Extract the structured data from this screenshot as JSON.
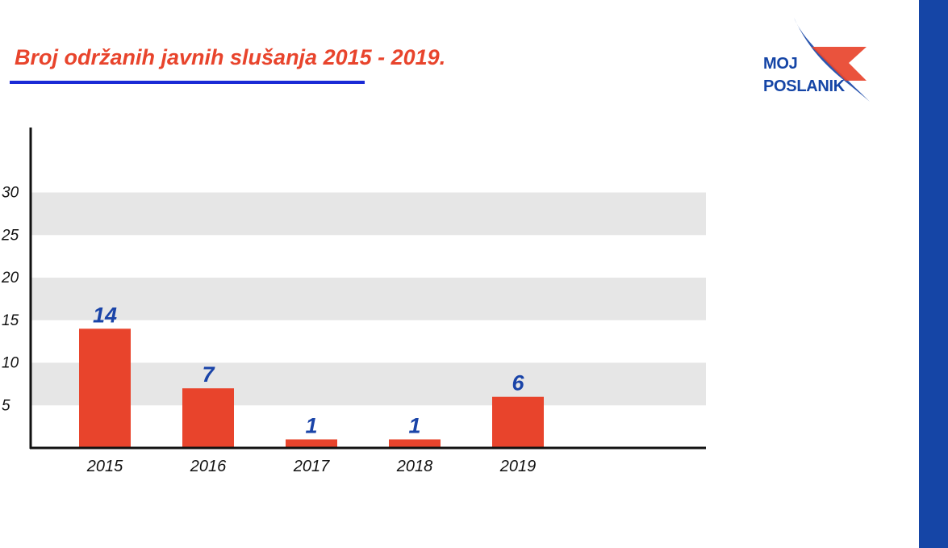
{
  "logo": {
    "line1": "MOJ",
    "line2": "POSLANIK",
    "colors": {
      "red": "#e8442c",
      "blue": "#1545a6"
    }
  },
  "theme": {
    "bar_color": "#e8442c",
    "value_label_color": "#1a44a8",
    "band_color": "#e6e6e6",
    "title_color": "#e8442c",
    "underline_color": "#1a2ad6",
    "stripe_color": "#1545a6"
  },
  "chart_data": {
    "type": "bar",
    "title": "Broj održanih javnih slušanja 2015 - 2019.",
    "categories": [
      "2015",
      "2016",
      "2017",
      "2018",
      "2019"
    ],
    "values": [
      14,
      7,
      1,
      1,
      6
    ],
    "value_labels": [
      "14",
      "7",
      "1",
      "1",
      "6"
    ],
    "yticks": [
      5,
      10,
      15,
      20,
      25,
      30
    ],
    "ytick_labels": [
      "5",
      "10",
      "15",
      "20",
      "25",
      "30"
    ],
    "ylim": [
      0,
      37
    ],
    "xlabel": "",
    "ylabel": "",
    "grid": "alternating-bands",
    "legend": "none"
  }
}
